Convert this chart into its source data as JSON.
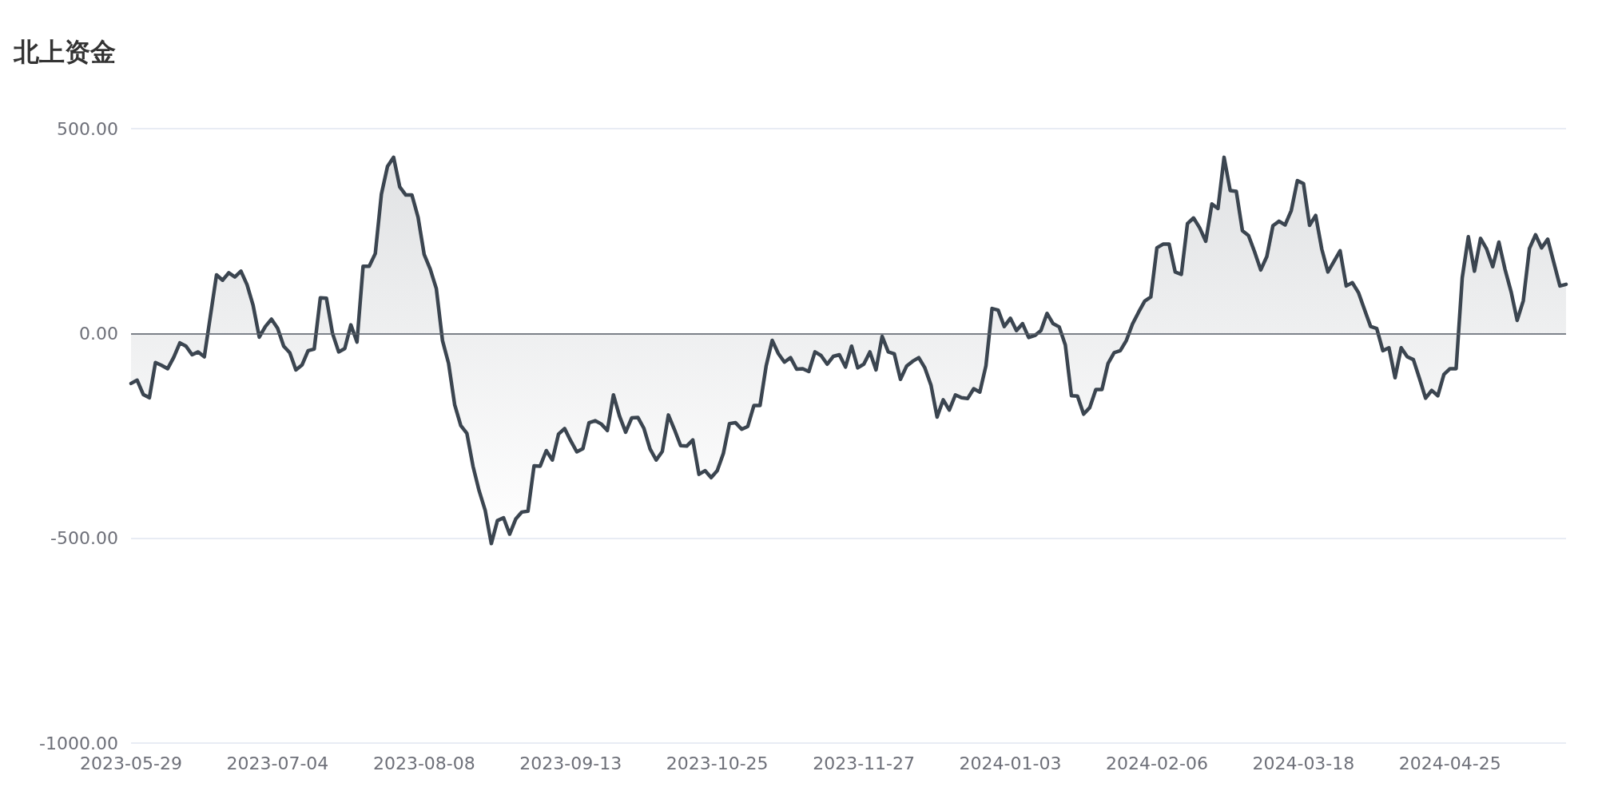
{
  "chart_data": {
    "type": "area",
    "title": "北上资金",
    "categories": [
      "2023-05-29",
      null,
      null,
      null,
      null,
      null,
      null,
      null,
      null,
      null,
      null,
      null,
      null,
      null,
      null,
      null,
      null,
      null,
      null,
      null,
      null,
      null,
      null,
      null,
      "2023-07-04",
      null,
      null,
      null,
      null,
      null,
      null,
      null,
      null,
      null,
      null,
      null,
      null,
      null,
      null,
      null,
      null,
      null,
      null,
      null,
      null,
      null,
      null,
      null,
      "2023-08-08",
      null,
      null,
      null,
      null,
      null,
      null,
      null,
      null,
      null,
      null,
      null,
      null,
      null,
      null,
      null,
      null,
      null,
      null,
      null,
      null,
      null,
      null,
      null,
      "2023-09-13",
      null,
      null,
      null,
      null,
      null,
      null,
      null,
      null,
      null,
      null,
      null,
      null,
      null,
      null,
      null,
      null,
      null,
      null,
      null,
      null,
      null,
      null,
      null,
      "2023-10-25",
      null,
      null,
      null,
      null,
      null,
      null,
      null,
      null,
      null,
      null,
      null,
      null,
      null,
      null,
      null,
      null,
      null,
      null,
      null,
      null,
      null,
      null,
      null,
      "2023-11-27",
      null,
      null,
      null,
      null,
      null,
      null,
      null,
      null,
      null,
      null,
      null,
      null,
      null,
      null,
      null,
      null,
      null,
      null,
      null,
      null,
      null,
      null,
      null,
      "2024-01-03",
      null,
      null,
      null,
      null,
      null,
      null,
      null,
      null,
      null,
      null,
      null,
      null,
      null,
      null,
      null,
      null,
      null,
      null,
      null,
      null,
      null,
      null,
      null,
      "2024-02-06",
      null,
      null,
      null,
      null,
      null,
      null,
      null,
      null,
      null,
      null,
      null,
      null,
      null,
      null,
      null,
      null,
      null,
      null,
      null,
      null,
      null,
      null,
      null,
      "2024-03-18",
      null,
      null,
      null,
      null,
      null,
      null,
      null,
      null,
      null,
      null,
      null,
      null,
      null,
      null,
      null,
      null,
      null,
      null,
      null,
      null,
      null,
      null,
      null,
      "2024-04-25",
      null,
      null,
      null,
      null,
      null,
      null,
      null,
      null,
      null,
      null,
      null,
      null,
      null,
      null,
      null,
      null,
      null,
      null,
      null
    ],
    "values": [
      -122,
      -114,
      -149,
      -157,
      -71,
      -78,
      -86,
      -58,
      -23,
      -31,
      -52,
      -45,
      -57,
      43,
      143,
      130,
      148,
      138,
      152,
      119,
      68,
      -9,
      17,
      35,
      13,
      -31,
      -47,
      -89,
      -77,
      -42,
      -38,
      87,
      86,
      0,
      -45,
      -37,
      21,
      -21,
      164,
      164,
      195,
      340,
      408,
      430,
      358,
      338,
      338,
      284,
      193,
      157,
      109,
      -17,
      -73,
      -174,
      -225,
      -244,
      -324,
      -384,
      -432,
      -513,
      -457,
      -450,
      -490,
      -453,
      -436,
      -434,
      -323,
      -324,
      -286,
      -309,
      -246,
      -232,
      -262,
      -289,
      -281,
      -218,
      -213,
      -221,
      -237,
      -150,
      -202,
      -241,
      -206,
      -205,
      -232,
      -282,
      -309,
      -288,
      -199,
      -235,
      -274,
      -275,
      -260,
      -344,
      -335,
      -352,
      -335,
      -293,
      -220,
      -218,
      -234,
      -227,
      -176,
      -176,
      -80,
      -17,
      -49,
      -70,
      -59,
      -87,
      -86,
      -93,
      -45,
      -54,
      -75,
      -56,
      -52,
      -82,
      -31,
      -84,
      -75,
      -45,
      -89,
      -7,
      -45,
      -50,
      -112,
      -80,
      -68,
      -59,
      -84,
      -126,
      -204,
      -162,
      -187,
      -150,
      -157,
      -159,
      -135,
      -143,
      -79,
      61,
      57,
      17,
      37,
      7,
      24,
      -10,
      -5,
      7,
      49,
      24,
      16,
      -28,
      -152,
      -153,
      -197,
      -181,
      -137,
      -137,
      -73,
      -47,
      -42,
      -17,
      23,
      52,
      79,
      89,
      209,
      218,
      218,
      150,
      144,
      268,
      282,
      258,
      225,
      316,
      305,
      430,
      349,
      347,
      251,
      239,
      199,
      155,
      188,
      263,
      274,
      265,
      300,
      373,
      366,
      264,
      288,
      206,
      150,
      176,
      202,
      116,
      124,
      100,
      58,
      17,
      12,
      -42,
      -35,
      -108,
      -35,
      -57,
      -64,
      -110,
      -158,
      -139,
      -152,
      -100,
      -86,
      -86,
      136,
      236,
      152,
      232,
      206,
      163,
      223,
      157,
      102,
      32,
      80,
      207,
      241,
      209,
      230,
      173,
      116,
      120
    ],
    "color": "#3b4550",
    "ylim": [
      -1000,
      500
    ],
    "yticks": [
      {
        "value": -1000,
        "label": "-1000.00"
      },
      {
        "value": -500,
        "label": "-500.00"
      },
      {
        "value": 0,
        "label": "0.00"
      },
      {
        "value": 500,
        "label": "500.00"
      }
    ],
    "grid": "y",
    "ref_lines": [
      {
        "axis": "y",
        "value": 0,
        "color": "#5b6068"
      }
    ]
  }
}
